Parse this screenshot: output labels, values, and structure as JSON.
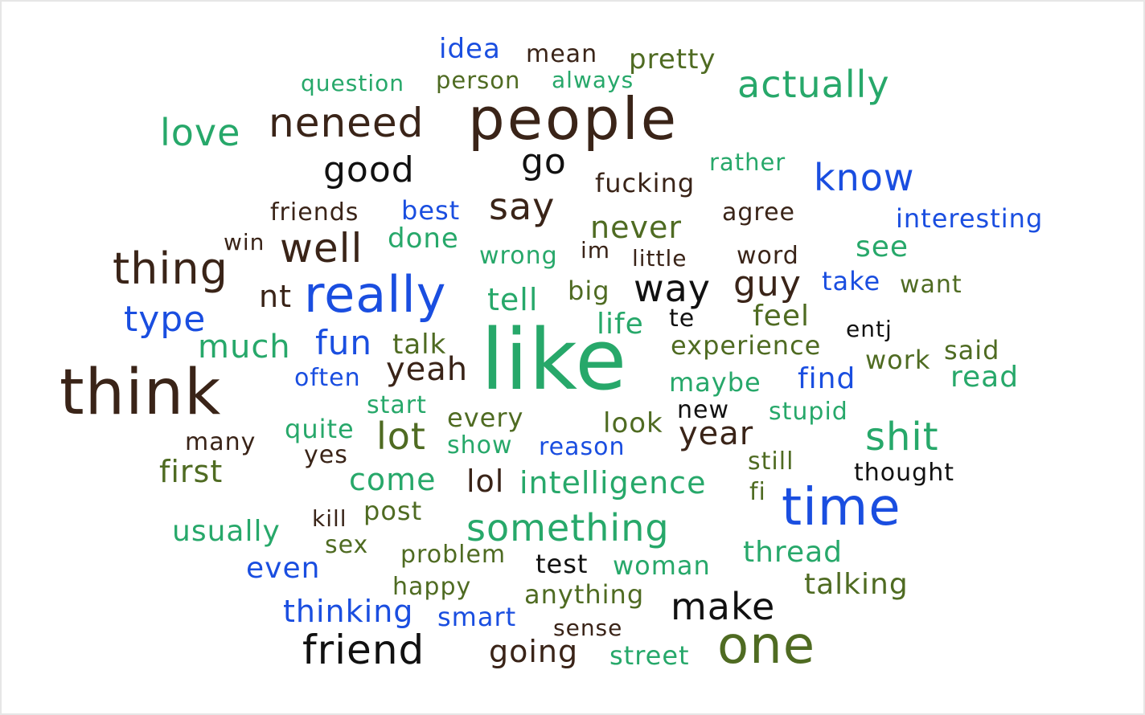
{
  "words": [
    {
      "text": "idea",
      "color": "blue"
    },
    {
      "text": "mean",
      "color": "brown"
    },
    {
      "text": "pretty",
      "color": "olive"
    },
    {
      "text": "question",
      "color": "green"
    },
    {
      "text": "person",
      "color": "olive"
    },
    {
      "text": "always",
      "color": "green"
    },
    {
      "text": "actually",
      "color": "green"
    },
    {
      "text": "love",
      "color": "green"
    },
    {
      "text": "neneed",
      "color": "brown"
    },
    {
      "text": "people",
      "color": "brown"
    },
    {
      "text": "good",
      "color": "black"
    },
    {
      "text": "go",
      "color": "black"
    },
    {
      "text": "rather",
      "color": "green"
    },
    {
      "text": "know",
      "color": "blue"
    },
    {
      "text": "fucking",
      "color": "brown"
    },
    {
      "text": "friends",
      "color": "brown"
    },
    {
      "text": "best",
      "color": "blue"
    },
    {
      "text": "say",
      "color": "brown"
    },
    {
      "text": "agree",
      "color": "brown"
    },
    {
      "text": "interesting",
      "color": "blue"
    },
    {
      "text": "never",
      "color": "olive"
    },
    {
      "text": "win",
      "color": "brown"
    },
    {
      "text": "done",
      "color": "green"
    },
    {
      "text": "well",
      "color": "brown"
    },
    {
      "text": "see",
      "color": "green"
    },
    {
      "text": "thing",
      "color": "brown"
    },
    {
      "text": "wrong",
      "color": "green"
    },
    {
      "text": "im",
      "color": "brown"
    },
    {
      "text": "little",
      "color": "brown"
    },
    {
      "text": "word",
      "color": "brown"
    },
    {
      "text": "really",
      "color": "blue"
    },
    {
      "text": "nt",
      "color": "brown"
    },
    {
      "text": "way",
      "color": "black"
    },
    {
      "text": "guy",
      "color": "brown"
    },
    {
      "text": "take",
      "color": "blue"
    },
    {
      "text": "want",
      "color": "olive"
    },
    {
      "text": "big",
      "color": "olive"
    },
    {
      "text": "tell",
      "color": "green"
    },
    {
      "text": "type",
      "color": "blue"
    },
    {
      "text": "life",
      "color": "green"
    },
    {
      "text": "te",
      "color": "black"
    },
    {
      "text": "feel",
      "color": "olive"
    },
    {
      "text": "entj",
      "color": "black"
    },
    {
      "text": "much",
      "color": "green"
    },
    {
      "text": "fun",
      "color": "blue"
    },
    {
      "text": "talk",
      "color": "olive"
    },
    {
      "text": "like",
      "color": "green"
    },
    {
      "text": "experience",
      "color": "olive"
    },
    {
      "text": "said",
      "color": "olive"
    },
    {
      "text": "work",
      "color": "olive"
    },
    {
      "text": "think",
      "color": "brown"
    },
    {
      "text": "often",
      "color": "blue"
    },
    {
      "text": "yeah",
      "color": "brown"
    },
    {
      "text": "maybe",
      "color": "green"
    },
    {
      "text": "find",
      "color": "blue"
    },
    {
      "text": "read",
      "color": "green"
    },
    {
      "text": "start",
      "color": "green"
    },
    {
      "text": "new",
      "color": "black"
    },
    {
      "text": "stupid",
      "color": "green"
    },
    {
      "text": "quite",
      "color": "green"
    },
    {
      "text": "every",
      "color": "olive"
    },
    {
      "text": "look",
      "color": "olive"
    },
    {
      "text": "lot",
      "color": "olive"
    },
    {
      "text": "year",
      "color": "brown"
    },
    {
      "text": "shit",
      "color": "green"
    },
    {
      "text": "many",
      "color": "brown"
    },
    {
      "text": "show",
      "color": "green"
    },
    {
      "text": "reason",
      "color": "blue"
    },
    {
      "text": "yes",
      "color": "brown"
    },
    {
      "text": "still",
      "color": "olive"
    },
    {
      "text": "first",
      "color": "olive"
    },
    {
      "text": "thought",
      "color": "black"
    },
    {
      "text": "come",
      "color": "green"
    },
    {
      "text": "lol",
      "color": "brown"
    },
    {
      "text": "intelligence",
      "color": "green"
    },
    {
      "text": "fi",
      "color": "olive"
    },
    {
      "text": "time",
      "color": "blue"
    },
    {
      "text": "kill",
      "color": "brown"
    },
    {
      "text": "post",
      "color": "olive"
    },
    {
      "text": "usually",
      "color": "green"
    },
    {
      "text": "something",
      "color": "green"
    },
    {
      "text": "sex",
      "color": "olive"
    },
    {
      "text": "problem",
      "color": "olive"
    },
    {
      "text": "thread",
      "color": "green"
    },
    {
      "text": "test",
      "color": "black"
    },
    {
      "text": "woman",
      "color": "green"
    },
    {
      "text": "even",
      "color": "blue"
    },
    {
      "text": "happy",
      "color": "olive"
    },
    {
      "text": "talking",
      "color": "olive"
    },
    {
      "text": "anything",
      "color": "olive"
    },
    {
      "text": "make",
      "color": "black"
    },
    {
      "text": "thinking",
      "color": "blue"
    },
    {
      "text": "smart",
      "color": "blue"
    },
    {
      "text": "sense",
      "color": "brown"
    },
    {
      "text": "friend",
      "color": "black"
    },
    {
      "text": "going",
      "color": "brown"
    },
    {
      "text": "street",
      "color": "green"
    },
    {
      "text": "one",
      "color": "olive"
    }
  ]
}
